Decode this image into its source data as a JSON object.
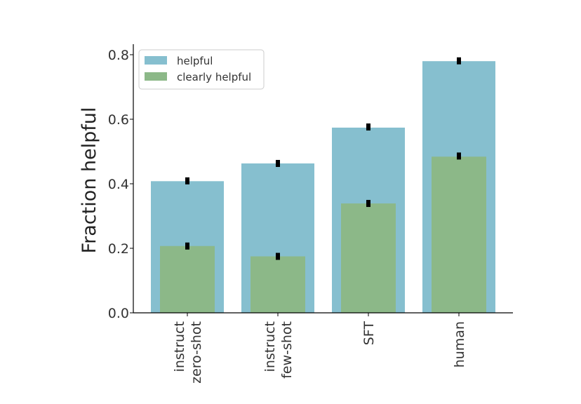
{
  "chart_data": {
    "type": "bar",
    "ylabel": "Fraction helpful",
    "xlabel": "",
    "ylim": [
      0,
      0.83
    ],
    "yticks": [
      "0.0",
      "0.2",
      "0.4",
      "0.6",
      "0.8"
    ],
    "ytick_values": [
      0.0,
      0.2,
      0.4,
      0.6,
      0.8
    ],
    "categories": [
      [
        "instruct",
        "zero-shot"
      ],
      [
        "instruct",
        "few-shot"
      ],
      [
        "SFT"
      ],
      [
        "human"
      ]
    ],
    "grid": false,
    "legend_position": "top-left",
    "series": [
      {
        "name": "helpful",
        "color": "#86bfcf",
        "values": [
          0.408,
          0.463,
          0.574,
          0.78
        ],
        "error_marks": [
          0.409,
          0.463,
          0.576,
          0.781
        ]
      },
      {
        "name": "clearly helpful",
        "color": "#8cb888",
        "values": [
          0.207,
          0.175,
          0.339,
          0.484
        ],
        "error_marks": [
          0.207,
          0.175,
          0.339,
          0.486
        ]
      }
    ]
  }
}
